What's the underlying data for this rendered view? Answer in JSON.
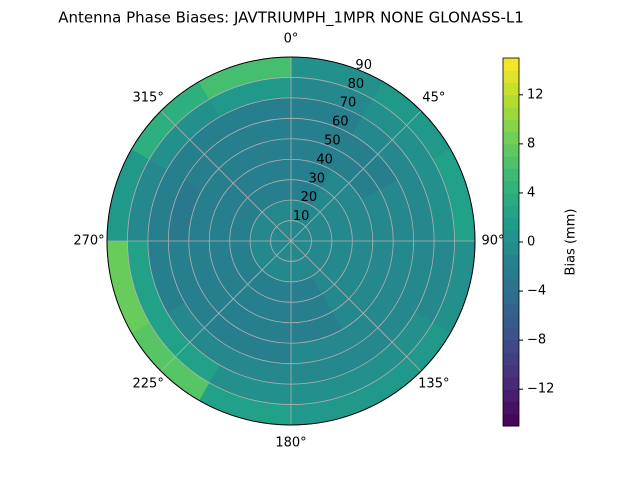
{
  "chart_data": {
    "type": "polar-contour",
    "title": "Antenna Phase Biases: JAVTRIUMPH_1MPR NONE GLONASS-L1",
    "azimuth_bins": [
      0,
      30,
      60,
      90,
      120,
      150,
      180,
      210,
      240,
      270,
      300,
      330,
      360
    ],
    "zenith_bins": [
      0,
      10,
      20,
      30,
      40,
      50,
      60,
      70,
      80,
      90
    ],
    "values": [
      [
        -1,
        -1,
        -1,
        -1,
        -1,
        -1,
        -1,
        -1,
        -1,
        -1,
        -1,
        -1
      ],
      [
        -1,
        -1,
        -1,
        -1,
        -1,
        -1,
        -1,
        -1,
        -1,
        -1,
        -1,
        -1
      ],
      [
        -2,
        -1,
        -1,
        -1,
        -1,
        -2,
        -2,
        -2,
        -2,
        -2,
        -2,
        -2
      ],
      [
        -2,
        -1,
        -1,
        -1,
        -1,
        -2,
        -2,
        -2,
        -2,
        -2,
        -2,
        -2
      ],
      [
        -2,
        -2,
        -1,
        -1,
        -1,
        -2,
        -2,
        -2,
        -2,
        -2,
        -2,
        -2
      ],
      [
        -2,
        -2,
        -1,
        -1,
        -1,
        -1,
        -2,
        -2,
        -2,
        -3,
        -2,
        -2
      ],
      [
        -2,
        -1,
        -1,
        -1,
        -1,
        -1,
        -1,
        -1,
        -2,
        -2,
        -2,
        -2
      ],
      [
        -1,
        0,
        0,
        -1,
        0,
        0,
        0,
        2,
        2,
        -1,
        0,
        1
      ],
      [
        0,
        1,
        2,
        0,
        1,
        1,
        2,
        7,
        8,
        1,
        4,
        6
      ]
    ],
    "rlim": [
      0,
      90
    ],
    "rticks": [
      10,
      20,
      30,
      40,
      50,
      60,
      70,
      80,
      90
    ],
    "thetaticks": [
      {
        "value": 0,
        "label": "0°"
      },
      {
        "value": 45,
        "label": "45°"
      },
      {
        "value": 90,
        "label": "90°"
      },
      {
        "value": 135,
        "label": "135°"
      },
      {
        "value": 180,
        "label": "180°"
      },
      {
        "value": 225,
        "label": "225°"
      },
      {
        "value": 270,
        "label": "270°"
      },
      {
        "value": 315,
        "label": "315°"
      }
    ],
    "colormap": "viridis",
    "grid": true,
    "colorbar": {
      "label": "Bias (mm)",
      "clim": [
        -15,
        15
      ],
      "ticks": [
        {
          "value": -12,
          "label": "−12"
        },
        {
          "value": -8,
          "label": "−8"
        },
        {
          "value": -4,
          "label": "−4"
        },
        0,
        4,
        8,
        12
      ]
    }
  }
}
